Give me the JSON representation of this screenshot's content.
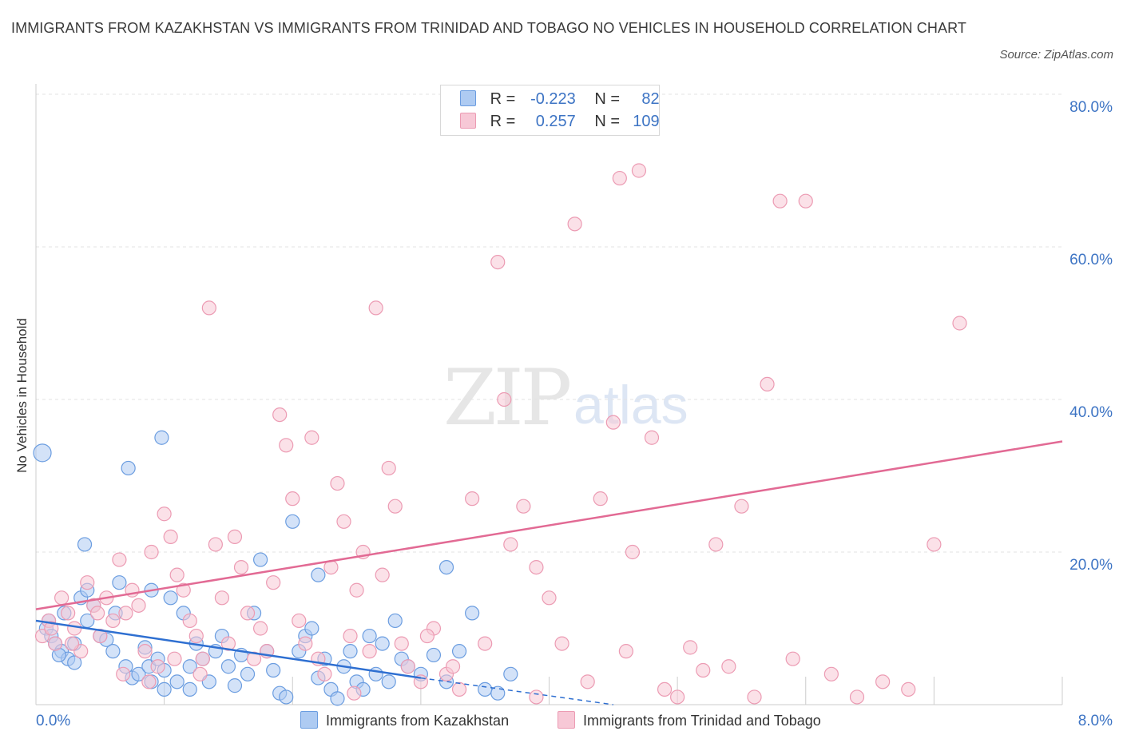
{
  "chart_data": {
    "type": "scatter",
    "title": "IMMIGRANTS FROM KAZAKHSTAN VS IMMIGRANTS FROM TRINIDAD AND TOBAGO NO VEHICLES IN HOUSEHOLD CORRELATION CHART",
    "source": "Source: ZipAtlas.com",
    "ylabel": "No Vehicles in Household",
    "xlabel": "",
    "xlim": [
      0,
      8
    ],
    "ylim": [
      0,
      80
    ],
    "x_ticks": [
      {
        "value": 0,
        "label": "0.0%"
      },
      {
        "value": 8,
        "label": "8.0%"
      }
    ],
    "y_ticks": [
      {
        "value": 20,
        "label": "20.0%"
      },
      {
        "value": 40,
        "label": "40.0%"
      },
      {
        "value": 60,
        "label": "60.0%"
      },
      {
        "value": 80,
        "label": "80.0%"
      }
    ],
    "grid": true,
    "legend_placement": "top-center",
    "watermark": {
      "zip": "ZIP",
      "atlas": "atlas"
    },
    "series": [
      {
        "name": "Immigrants from Kazakhstan",
        "color": "#6b9de0",
        "fill": "#aecbf2",
        "line_color": "#2e6fd1",
        "R": "-0.223",
        "N": "82",
        "trend": {
          "x0": 0.0,
          "y0": 11.0,
          "x1": 3.0,
          "y1": 3.5,
          "dash_to_x": 4.5,
          "dash_to_y": 0
        },
        "points": [
          [
            0.05,
            33
          ],
          [
            0.1,
            11
          ],
          [
            0.08,
            10
          ],
          [
            0.12,
            9
          ],
          [
            0.15,
            8
          ],
          [
            0.2,
            7
          ],
          [
            0.25,
            6
          ],
          [
            0.3,
            5.5
          ],
          [
            0.18,
            6.5
          ],
          [
            0.22,
            12
          ],
          [
            0.35,
            14
          ],
          [
            0.4,
            15
          ],
          [
            0.45,
            13
          ],
          [
            0.38,
            21
          ],
          [
            0.5,
            9
          ],
          [
            0.55,
            8.5
          ],
          [
            0.6,
            7
          ],
          [
            0.62,
            12
          ],
          [
            0.65,
            16
          ],
          [
            0.7,
            5
          ],
          [
            0.72,
            31
          ],
          [
            0.75,
            3.5
          ],
          [
            0.8,
            4
          ],
          [
            0.85,
            7.5
          ],
          [
            0.88,
            5
          ],
          [
            0.9,
            15
          ],
          [
            0.95,
            6
          ],
          [
            0.98,
            35
          ],
          [
            1.0,
            4.5
          ],
          [
            1.05,
            14
          ],
          [
            1.1,
            3
          ],
          [
            1.15,
            12
          ],
          [
            1.2,
            2
          ],
          [
            1.25,
            8
          ],
          [
            1.3,
            6
          ],
          [
            1.35,
            3
          ],
          [
            1.4,
            7
          ],
          [
            1.45,
            9
          ],
          [
            1.5,
            5
          ],
          [
            1.55,
            2.5
          ],
          [
            1.6,
            6.5
          ],
          [
            1.65,
            4
          ],
          [
            1.7,
            12
          ],
          [
            1.75,
            19
          ],
          [
            1.8,
            7
          ],
          [
            1.85,
            4.5
          ],
          [
            1.9,
            1.5
          ],
          [
            1.95,
            1
          ],
          [
            2.0,
            24
          ],
          [
            2.05,
            7
          ],
          [
            2.1,
            9
          ],
          [
            2.15,
            10
          ],
          [
            2.2,
            3.5
          ],
          [
            2.25,
            6
          ],
          [
            2.3,
            2
          ],
          [
            2.35,
            0.8
          ],
          [
            2.4,
            5
          ],
          [
            2.45,
            7
          ],
          [
            2.5,
            3
          ],
          [
            2.55,
            2
          ],
          [
            2.6,
            9
          ],
          [
            2.65,
            4
          ],
          [
            2.7,
            8
          ],
          [
            2.75,
            3
          ],
          [
            2.8,
            11
          ],
          [
            2.85,
            6
          ],
          [
            2.9,
            5
          ],
          [
            3.0,
            4
          ],
          [
            3.1,
            6.5
          ],
          [
            3.2,
            3
          ],
          [
            3.3,
            7
          ],
          [
            3.4,
            12
          ],
          [
            3.5,
            2
          ],
          [
            3.6,
            1.5
          ],
          [
            3.7,
            4
          ],
          [
            1.0,
            2
          ],
          [
            1.2,
            5
          ],
          [
            0.9,
            3
          ],
          [
            0.3,
            8
          ],
          [
            0.4,
            11
          ],
          [
            2.2,
            17
          ],
          [
            3.2,
            18
          ]
        ]
      },
      {
        "name": "Immigrants from Trinidad and Tobago",
        "color": "#ec9bb3",
        "fill": "#f7c8d6",
        "line_color": "#e26a94",
        "R": "0.257",
        "N": "109",
        "trend": {
          "x0": 0.0,
          "y0": 12.5,
          "x1": 8.0,
          "y1": 34.5
        },
        "points": [
          [
            0.05,
            9
          ],
          [
            0.1,
            11
          ],
          [
            0.15,
            8
          ],
          [
            0.2,
            14
          ],
          [
            0.25,
            12
          ],
          [
            0.3,
            10
          ],
          [
            0.35,
            7
          ],
          [
            0.4,
            16
          ],
          [
            0.45,
            13
          ],
          [
            0.5,
            9
          ],
          [
            0.55,
            14
          ],
          [
            0.6,
            11
          ],
          [
            0.65,
            19
          ],
          [
            0.7,
            12
          ],
          [
            0.75,
            15
          ],
          [
            0.8,
            13
          ],
          [
            0.85,
            7
          ],
          [
            0.9,
            20
          ],
          [
            0.95,
            5
          ],
          [
            1.0,
            25
          ],
          [
            1.05,
            22
          ],
          [
            1.1,
            17
          ],
          [
            1.15,
            15
          ],
          [
            1.2,
            11
          ],
          [
            1.25,
            9
          ],
          [
            1.3,
            6
          ],
          [
            1.35,
            52
          ],
          [
            1.4,
            21
          ],
          [
            1.45,
            14
          ],
          [
            1.5,
            8
          ],
          [
            1.55,
            22
          ],
          [
            1.6,
            18
          ],
          [
            1.65,
            12
          ],
          [
            1.7,
            6
          ],
          [
            1.75,
            10
          ],
          [
            1.8,
            7
          ],
          [
            1.85,
            16
          ],
          [
            1.9,
            38
          ],
          [
            1.95,
            34
          ],
          [
            2.0,
            27
          ],
          [
            2.05,
            11
          ],
          [
            2.1,
            8
          ],
          [
            2.15,
            35
          ],
          [
            2.2,
            6
          ],
          [
            2.25,
            4
          ],
          [
            2.3,
            18
          ],
          [
            2.35,
            29
          ],
          [
            2.4,
            24
          ],
          [
            2.45,
            9
          ],
          [
            2.5,
            15
          ],
          [
            2.55,
            20
          ],
          [
            2.6,
            7
          ],
          [
            2.65,
            52
          ],
          [
            2.7,
            17
          ],
          [
            2.75,
            31
          ],
          [
            2.8,
            26
          ],
          [
            2.85,
            8
          ],
          [
            2.9,
            5
          ],
          [
            3.0,
            3
          ],
          [
            3.1,
            10
          ],
          [
            3.2,
            4
          ],
          [
            3.3,
            2
          ],
          [
            3.4,
            27
          ],
          [
            3.5,
            8
          ],
          [
            3.6,
            58
          ],
          [
            3.65,
            40
          ],
          [
            3.7,
            21
          ],
          [
            3.8,
            26
          ],
          [
            3.9,
            18
          ],
          [
            4.0,
            14
          ],
          [
            4.1,
            8
          ],
          [
            4.2,
            63
          ],
          [
            4.3,
            3
          ],
          [
            4.4,
            27
          ],
          [
            4.5,
            37
          ],
          [
            4.55,
            69
          ],
          [
            4.6,
            7
          ],
          [
            4.65,
            20
          ],
          [
            4.7,
            70
          ],
          [
            4.8,
            35
          ],
          [
            4.9,
            2
          ],
          [
            5.0,
            1
          ],
          [
            5.1,
            7.5
          ],
          [
            5.2,
            4.5
          ],
          [
            5.3,
            21
          ],
          [
            5.4,
            5
          ],
          [
            5.5,
            26
          ],
          [
            5.6,
            1
          ],
          [
            5.7,
            42
          ],
          [
            5.8,
            66
          ],
          [
            5.9,
            6
          ],
          [
            6.0,
            66
          ],
          [
            6.2,
            4
          ],
          [
            6.4,
            1
          ],
          [
            6.6,
            3
          ],
          [
            6.8,
            2
          ],
          [
            7.0,
            21
          ],
          [
            7.2,
            50
          ],
          [
            0.12,
            10
          ],
          [
            0.28,
            8
          ],
          [
            0.48,
            12
          ],
          [
            0.68,
            4
          ],
          [
            0.88,
            3
          ],
          [
            1.08,
            6
          ],
          [
            1.28,
            4
          ],
          [
            2.48,
            1.5
          ],
          [
            3.05,
            9
          ],
          [
            3.25,
            5
          ],
          [
            3.9,
            1
          ]
        ]
      }
    ]
  }
}
